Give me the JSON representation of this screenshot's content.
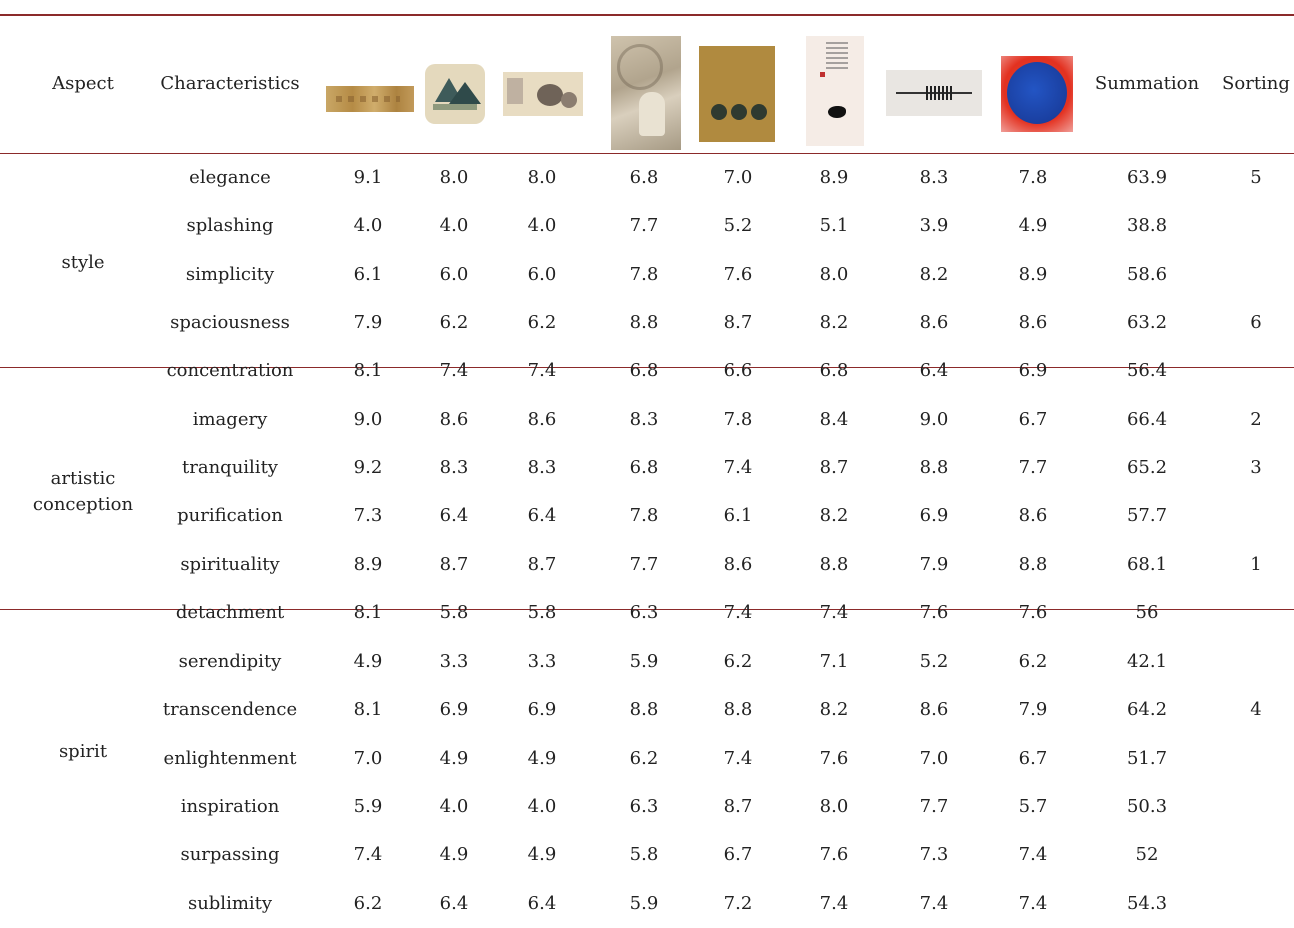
{
  "headers": {
    "aspect": "Aspect",
    "characteristics": "Characteristics",
    "summation": "Summation",
    "sorting": "Sorting"
  },
  "groups": {
    "style": "style",
    "artistic": "artistic conception",
    "spirit": "spirit"
  },
  "rows": [
    {
      "name": "elegance",
      "v": [
        "9.1",
        "8.0",
        "8.0",
        "6.8",
        "7.0",
        "8.9",
        "8.3",
        "7.8"
      ],
      "sum": "63.9",
      "sort": "5"
    },
    {
      "name": "splashing",
      "v": [
        "4.0",
        "4.0",
        "4.0",
        "7.7",
        "5.2",
        "5.1",
        "3.9",
        "4.9"
      ],
      "sum": "38.8",
      "sort": ""
    },
    {
      "name": "simplicity",
      "v": [
        "6.1",
        "6.0",
        "6.0",
        "7.8",
        "7.6",
        "8.0",
        "8.2",
        "8.9"
      ],
      "sum": "58.6",
      "sort": ""
    },
    {
      "name": "spaciousness",
      "v": [
        "7.9",
        "6.2",
        "6.2",
        "8.8",
        "8.7",
        "8.2",
        "8.6",
        "8.6"
      ],
      "sum": "63.2",
      "sort": "6"
    },
    {
      "name": "concentration",
      "v": [
        "8.1",
        "7.4",
        "7.4",
        "6.8",
        "6.6",
        "6.8",
        "6.4",
        "6.9"
      ],
      "sum": "56.4",
      "sort": ""
    },
    {
      "name": "imagery",
      "v": [
        "9.0",
        "8.6",
        "8.6",
        "8.3",
        "7.8",
        "8.4",
        "9.0",
        "6.7"
      ],
      "sum": "66.4",
      "sort": "2"
    },
    {
      "name": "tranquility",
      "v": [
        "9.2",
        "8.3",
        "8.3",
        "6.8",
        "7.4",
        "8.7",
        "8.8",
        "7.7"
      ],
      "sum": "65.2",
      "sort": "3"
    },
    {
      "name": "purification",
      "v": [
        "7.3",
        "6.4",
        "6.4",
        "7.8",
        "6.1",
        "8.2",
        "6.9",
        "8.6"
      ],
      "sum": "57.7",
      "sort": ""
    },
    {
      "name": "spirituality",
      "v": [
        "8.9",
        "8.7",
        "8.7",
        "7.7",
        "8.6",
        "8.8",
        "7.9",
        "8.8"
      ],
      "sum": "68.1",
      "sort": "1"
    },
    {
      "name": "detachment",
      "v": [
        "8.1",
        "5.8",
        "5.8",
        "6.3",
        "7.4",
        "7.4",
        "7.6",
        "7.6"
      ],
      "sum": "56",
      "sort": ""
    },
    {
      "name": "serendipity",
      "v": [
        "4.9",
        "3.3",
        "3.3",
        "5.9",
        "6.2",
        "7.1",
        "5.2",
        "6.2"
      ],
      "sum": "42.1",
      "sort": ""
    },
    {
      "name": "transcendence",
      "v": [
        "8.1",
        "6.9",
        "6.9",
        "8.8",
        "8.8",
        "8.2",
        "8.6",
        "7.9"
      ],
      "sum": "64.2",
      "sort": "4"
    },
    {
      "name": "enlightenment",
      "v": [
        "7.0",
        "4.9",
        "4.9",
        "6.2",
        "7.4",
        "7.6",
        "7.0",
        "6.7"
      ],
      "sum": "51.7",
      "sort": ""
    },
    {
      "name": "inspiration",
      "v": [
        "5.9",
        "4.0",
        "4.0",
        "6.3",
        "8.7",
        "8.0",
        "7.7",
        "5.7"
      ],
      "sum": "50.3",
      "sort": ""
    },
    {
      "name": "surpassing",
      "v": [
        "7.4",
        "4.9",
        "4.9",
        "5.8",
        "6.7",
        "7.6",
        "7.3",
        "7.4"
      ],
      "sum": "52",
      "sort": ""
    },
    {
      "name": "sublimity",
      "v": [
        "6.2",
        "6.4",
        "6.4",
        "5.9",
        "7.2",
        "7.4",
        "7.4",
        "7.4"
      ],
      "sum": "54.3",
      "sort": ""
    }
  ],
  "thumbnails": [
    "landscape-scroll-thumbnail",
    "round-fan-mountain-thumbnail",
    "figures-handscroll-thumbnail",
    "seated-figure-thumbnail",
    "persimmons-thumbnail",
    "bird-calligraphy-thumbnail",
    "ink-line-thumbnail",
    "blue-disc-thumbnail"
  ]
}
